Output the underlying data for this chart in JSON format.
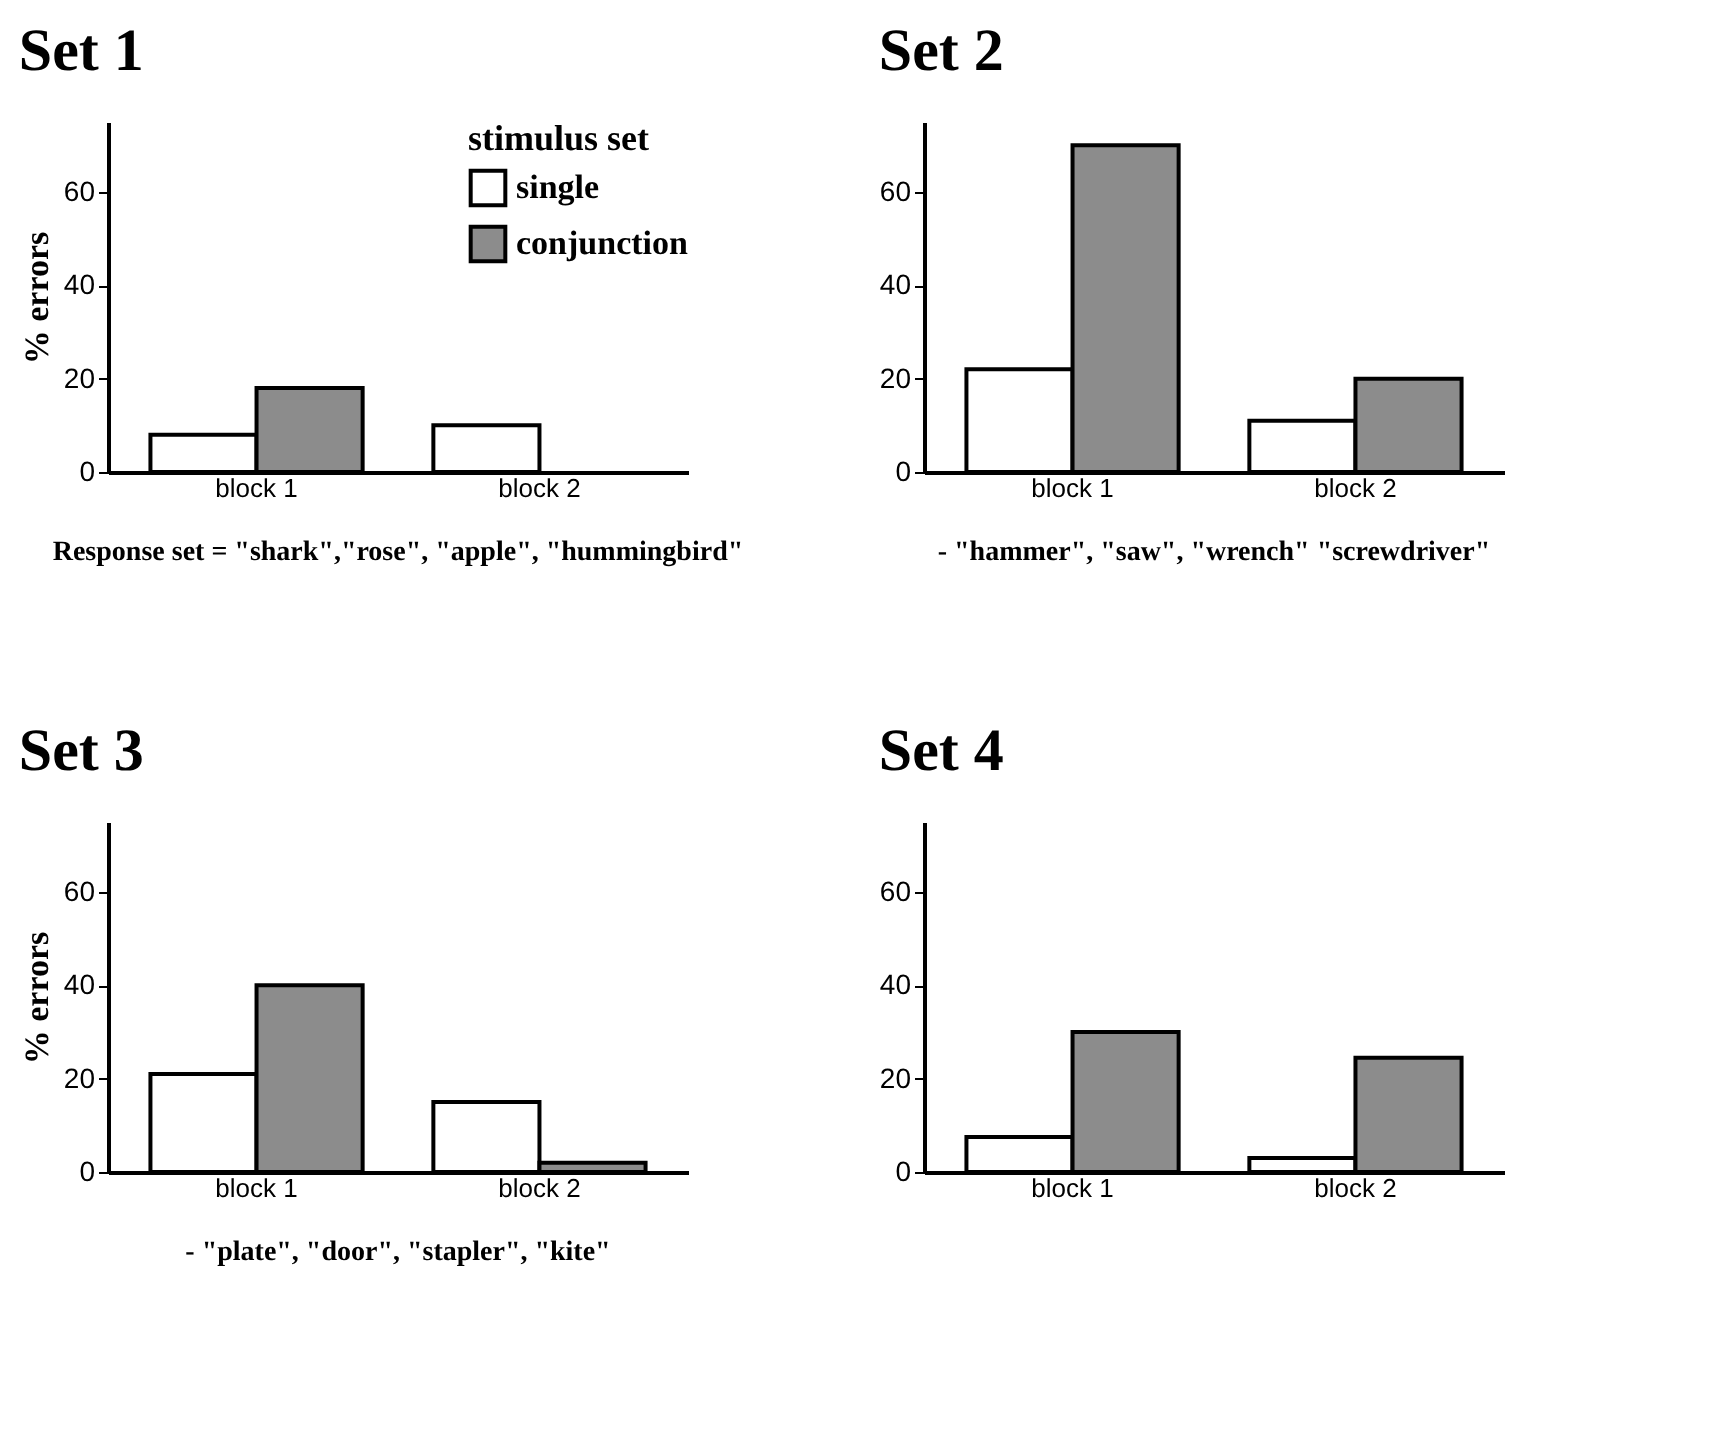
{
  "chart_data": [
    {
      "type": "bar",
      "title": "Set 1",
      "ylabel": "% errors",
      "legend_title": "stimulus set",
      "legend": "top right",
      "categories": [
        "block 1",
        "block 2"
      ],
      "ylim": [
        0,
        75
      ],
      "yticks": [
        0,
        20,
        40,
        60
      ],
      "series": [
        {
          "name": "single",
          "color": "#ffffff",
          "values": [
            8,
            10
          ]
        },
        {
          "name": "conjunction",
          "color": "#8c8c8c",
          "values": [
            18,
            0
          ]
        }
      ],
      "annotations": [
        "Response set = \"shark\",\"rose\", \"apple\", \"hummingbird\""
      ]
    },
    {
      "type": "bar",
      "title": "Set 2",
      "categories": [
        "block 1",
        "block 2"
      ],
      "ylim": [
        0,
        75
      ],
      "yticks": [
        0,
        20,
        40,
        60
      ],
      "series": [
        {
          "color": "#ffffff",
          "values": [
            22,
            11
          ]
        },
        {
          "color": "#8c8c8c",
          "values": [
            70,
            20
          ]
        }
      ],
      "annotations": [
        "- \"hammer\", \"saw\", \"wrench\" \"screwdriver\""
      ]
    },
    {
      "type": "bar",
      "title": "Set 3",
      "ylabel": "% errors",
      "categories": [
        "block 1",
        "block 2"
      ],
      "ylim": [
        0,
        75
      ],
      "yticks": [
        0,
        20,
        40,
        60
      ],
      "series": [
        {
          "color": "#ffffff",
          "values": [
            21,
            15
          ]
        },
        {
          "color": "#8c8c8c",
          "values": [
            40,
            2
          ]
        }
      ],
      "annotations": [
        "- \"plate\", \"door\", \"stapler\", \"kite\""
      ]
    },
    {
      "type": "bar",
      "title": "Set 4",
      "categories": [
        "block 1",
        "block 2"
      ],
      "ylim": [
        0,
        75
      ],
      "yticks": [
        0,
        20,
        40,
        60
      ],
      "series": [
        {
          "color": "#ffffff",
          "values": [
            7.5,
            3
          ]
        },
        {
          "color": "#8c8c8c",
          "values": [
            30,
            24.5
          ]
        }
      ]
    }
  ]
}
